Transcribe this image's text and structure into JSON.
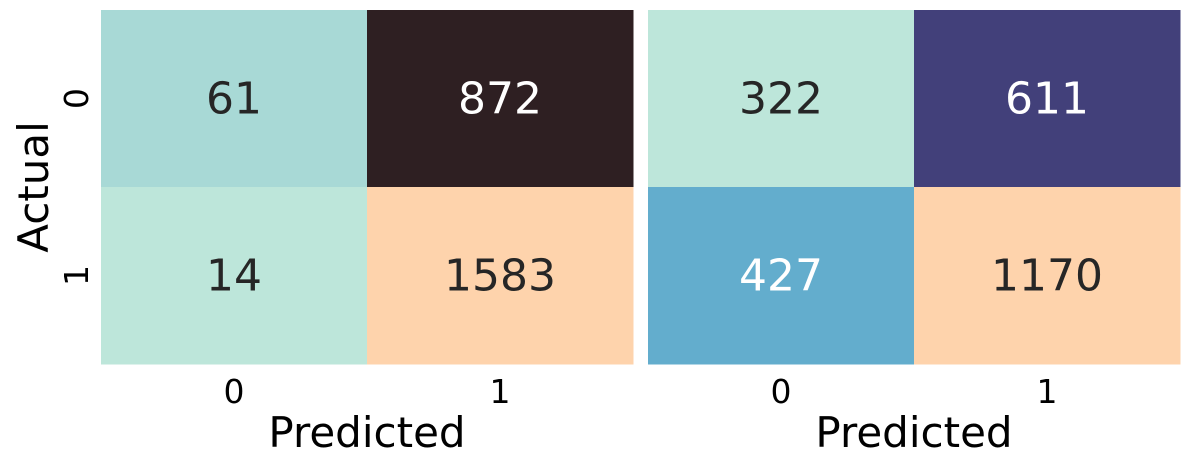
{
  "chart_data": [
    {
      "type": "heatmap",
      "xlabel": "Predicted",
      "ylabel": "Actual",
      "x_categories": [
        "0",
        "1"
      ],
      "y_categories": [
        "0",
        "1"
      ],
      "values": [
        [
          61,
          872
        ],
        [
          14,
          1583
        ]
      ],
      "cell_colors": [
        [
          "#a8d9d6",
          "#2e1f22"
        ],
        [
          "#bde6da",
          "#fed3ac"
        ]
      ],
      "text_colors": [
        [
          "#262626",
          "#ffffff"
        ],
        [
          "#262626",
          "#262626"
        ]
      ],
      "colorbar": false
    },
    {
      "type": "heatmap",
      "xlabel": "Predicted",
      "ylabel": "",
      "x_categories": [
        "0",
        "1"
      ],
      "y_categories": [
        "0",
        "1"
      ],
      "values": [
        [
          322,
          611
        ],
        [
          427,
          1170
        ]
      ],
      "cell_colors": [
        [
          "#bde6da",
          "#42407a"
        ],
        [
          "#63adcd",
          "#fed3ac"
        ]
      ],
      "text_colors": [
        [
          "#262626",
          "#ffffff"
        ],
        [
          "#ffffff",
          "#262626"
        ]
      ],
      "colorbar": false
    }
  ]
}
